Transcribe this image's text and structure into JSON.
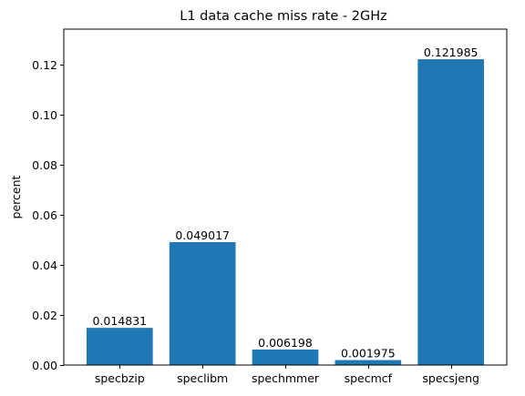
{
  "chart_data": {
    "type": "bar",
    "title": "L1 data cache miss rate - 2GHz",
    "xlabel": "",
    "ylabel": "percent",
    "categories": [
      "specbzip",
      "speclibm",
      "spechmmer",
      "specmcf",
      "specsjeng"
    ],
    "values": [
      0.014831,
      0.049017,
      0.006198,
      0.001975,
      0.121985
    ],
    "value_labels": [
      "0.014831",
      "0.049017",
      "0.006198",
      "0.001975",
      "0.121985"
    ],
    "ylim": [
      0,
      0.134
    ],
    "yticks": [
      0.0,
      0.02,
      0.04,
      0.06,
      0.08,
      0.1,
      0.12
    ],
    "ytick_labels": [
      "0.00",
      "0.02",
      "0.04",
      "0.06",
      "0.08",
      "0.10",
      "0.12"
    ],
    "bar_color": "#1f77b4",
    "grid": false,
    "legend": "none"
  }
}
